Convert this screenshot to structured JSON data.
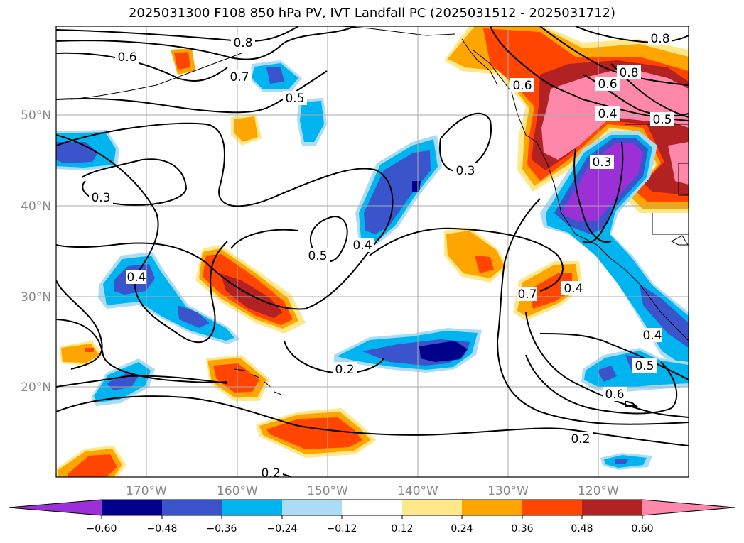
{
  "title": "2025031300 F108 850 hPa PV, IVT Landfall PC (2025031512 - 2025031712)",
  "map": {
    "lon_labels": [
      "170°W",
      "160°W",
      "150°W",
      "140°W",
      "130°W",
      "120°W"
    ],
    "lat_labels": [
      "50°N",
      "40°N",
      "30°N",
      "20°N"
    ],
    "contour_labels": [
      "0.8",
      "0.6",
      "0.7",
      "0.5",
      "0.3",
      "0.4",
      "0.5",
      "0.4",
      "0.2",
      "0.3",
      "0.4",
      "0.2",
      "0.6",
      "0.5",
      "0.4",
      "0.8",
      "0.6",
      "0.4",
      "0.3",
      "0.5",
      "0.6",
      "0.8",
      "0.7",
      "0.2"
    ]
  },
  "colorbar": {
    "tick_labels": [
      "−0.60",
      "−0.48",
      "−0.36",
      "−0.24",
      "−0.12",
      "0.12",
      "0.24",
      "0.36",
      "0.48",
      "0.60"
    ],
    "colors": [
      "#9b30d6",
      "#00008b",
      "#3a55cc",
      "#00b4f0",
      "#aadcf5",
      "#ffffff",
      "#ffe88a",
      "#ffa500",
      "#ff4500",
      "#b22222",
      "#ff88aa"
    ]
  }
}
